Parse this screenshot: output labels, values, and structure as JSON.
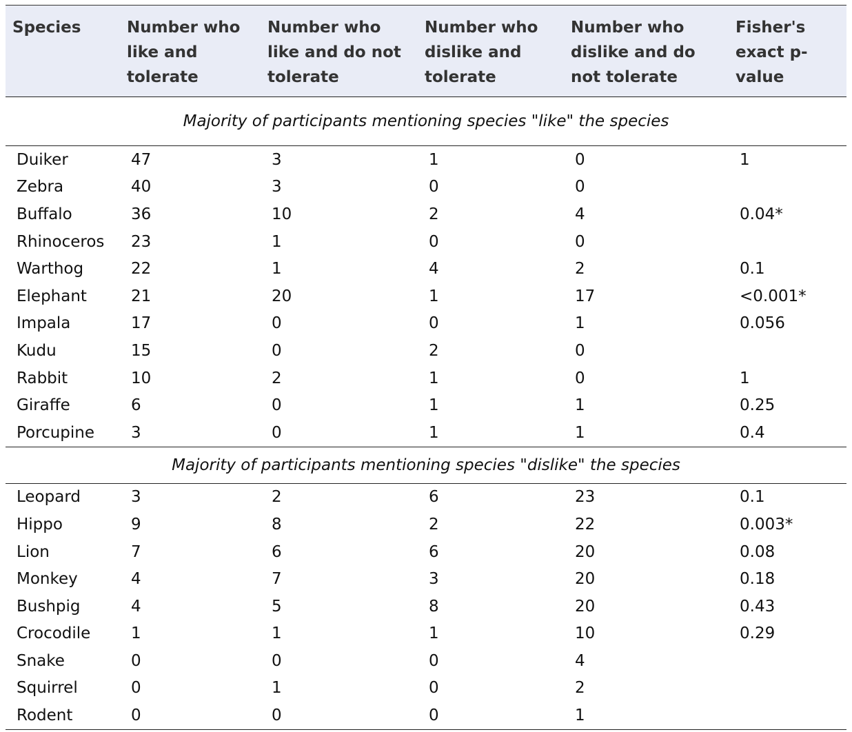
{
  "table": {
    "headers": [
      "Species",
      "Number who like and tolerate",
      "Number who like and do not tolerate",
      "Number who dislike and tolerate",
      "Number who dislike and do not tolerate",
      "Fisher's exact p-value"
    ],
    "sections": [
      {
        "title": "Majority of participants mentioning species \"like\" the species",
        "rows": [
          [
            "Duiker",
            "47",
            "3",
            "1",
            "0",
            "1"
          ],
          [
            "Zebra",
            "40",
            "3",
            "0",
            "0",
            ""
          ],
          [
            "Buffalo",
            "36",
            "10",
            "2",
            "4",
            "0.04*"
          ],
          [
            "Rhinoceros",
            "23",
            "1",
            "0",
            "0",
            ""
          ],
          [
            "Warthog",
            "22",
            "1",
            "4",
            "2",
            "0.1"
          ],
          [
            "Elephant",
            "21",
            "20",
            "1",
            "17",
            "<0.001*"
          ],
          [
            "Impala",
            "17",
            "0",
            "0",
            "1",
            "0.056"
          ],
          [
            "Kudu",
            "15",
            "0",
            "2",
            "0",
            ""
          ],
          [
            "Rabbit",
            "10",
            "2",
            "1",
            "0",
            "1"
          ],
          [
            "Giraffe",
            "6",
            "0",
            "1",
            "1",
            "0.25"
          ],
          [
            "Porcupine",
            "3",
            "0",
            "1",
            "1",
            "0.4"
          ]
        ]
      },
      {
        "title": "Majority of participants mentioning species \"dislike\" the species",
        "rows": [
          [
            "Leopard",
            "3",
            "2",
            "6",
            "23",
            "0.1"
          ],
          [
            "Hippo",
            "9",
            "8",
            "2",
            "22",
            "0.003*"
          ],
          [
            "Lion",
            "7",
            "6",
            "6",
            "20",
            "0.08"
          ],
          [
            "Monkey",
            "4",
            "7",
            "3",
            "20",
            "0.18"
          ],
          [
            "Bushpig",
            "4",
            "5",
            "8",
            "20",
            "0.43"
          ],
          [
            "Crocodile",
            "1",
            "1",
            "1",
            "10",
            "0.29"
          ],
          [
            "Snake",
            "0",
            "0",
            "0",
            "4",
            ""
          ],
          [
            "Squirrel",
            "0",
            "1",
            "0",
            "2",
            ""
          ],
          [
            "Rodent",
            "0",
            "0",
            "0",
            "1",
            ""
          ]
        ]
      }
    ]
  }
}
